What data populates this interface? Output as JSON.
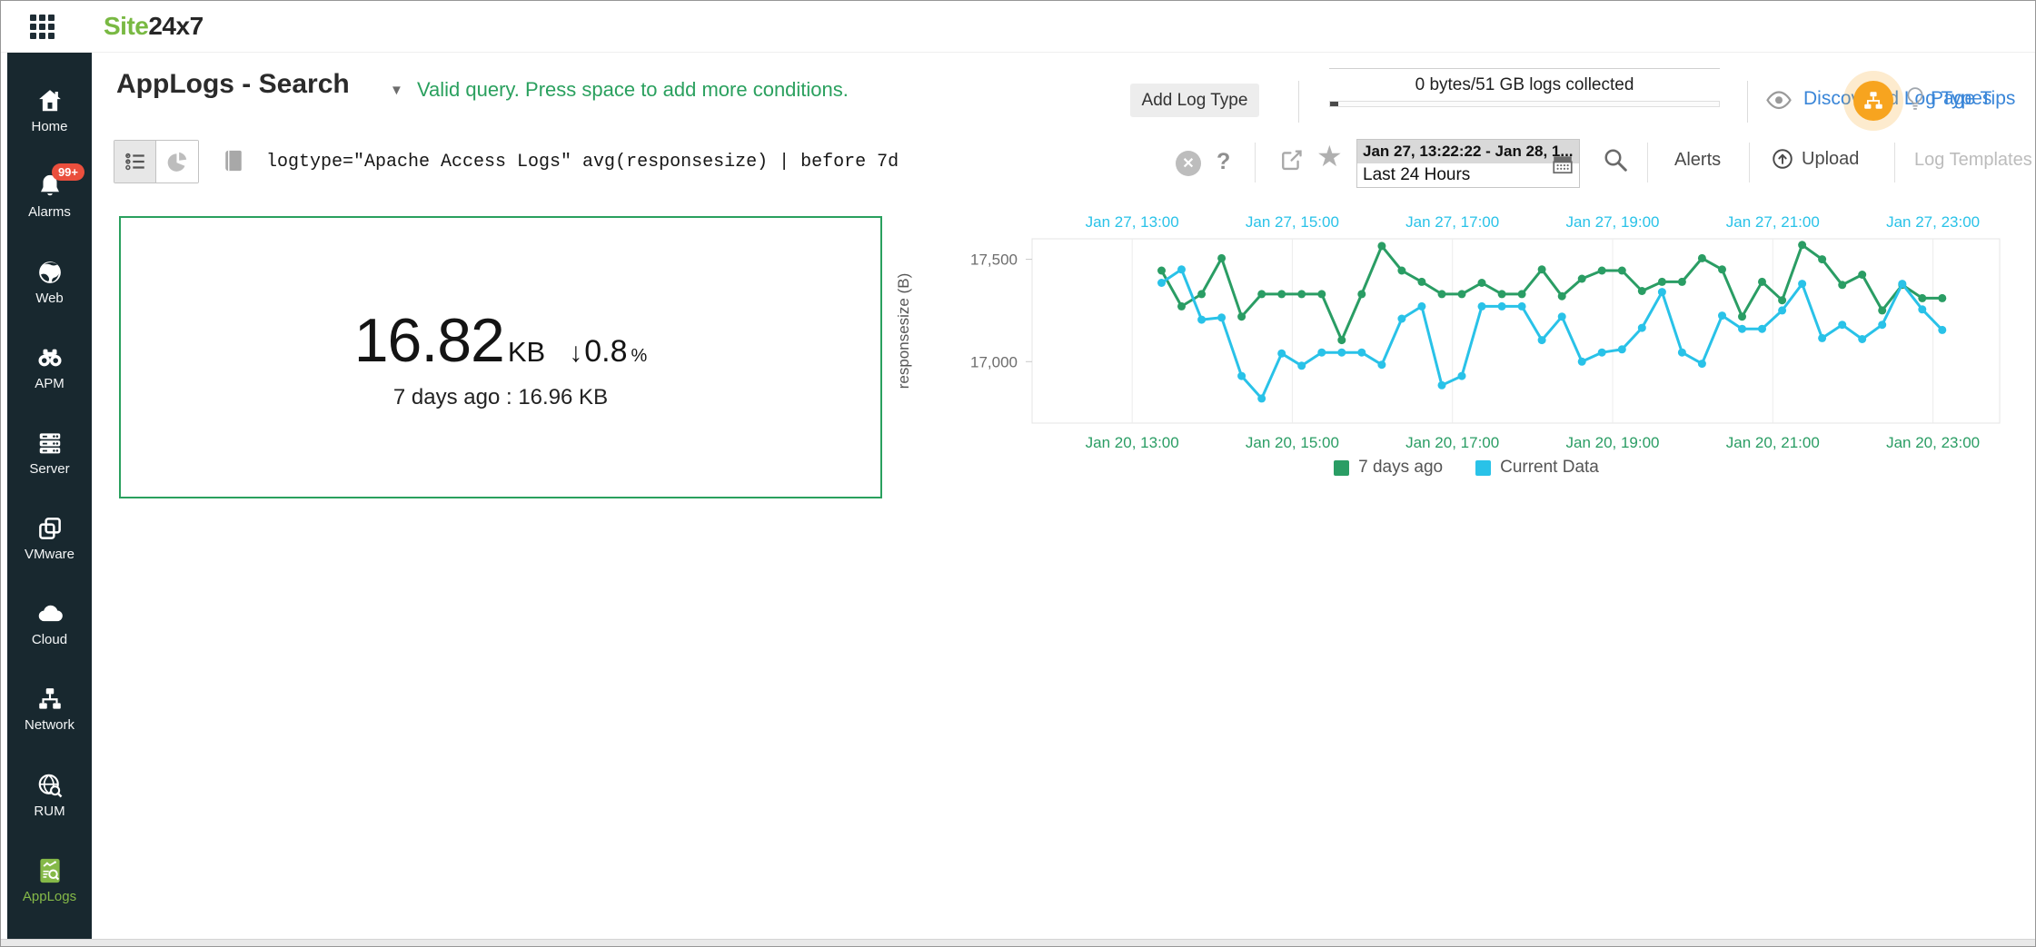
{
  "topbar": {
    "logo_part1": "Site",
    "logo_part2": "24x7"
  },
  "sidebar": {
    "items": [
      {
        "label": "Home",
        "icon": "home"
      },
      {
        "label": "Alarms",
        "icon": "bell",
        "badge": "99+"
      },
      {
        "label": "Web",
        "icon": "globe"
      },
      {
        "label": "APM",
        "icon": "binoculars"
      },
      {
        "label": "Server",
        "icon": "server"
      },
      {
        "label": "VMware",
        "icon": "vmware"
      },
      {
        "label": "Cloud",
        "icon": "cloud"
      },
      {
        "label": "Network",
        "icon": "network"
      },
      {
        "label": "RUM",
        "icon": "rum"
      },
      {
        "label": "AppLogs",
        "icon": "applogs",
        "active": true
      }
    ]
  },
  "header": {
    "title": "AppLogs - Search",
    "validation_message": "Valid query. Press space to add more conditions.",
    "add_log_type_label": "Add Log Type",
    "usage_text": "0 bytes/51 GB logs collected",
    "discovered_label": "Discovered Log Types",
    "page_tips_label": "Page Tips"
  },
  "querybar": {
    "query": "logtype=\"Apache Access Logs\" avg(responsesize) | before 7d",
    "help_label": "?",
    "star_glyph": "★",
    "date_range": "Jan 27, 13:22:22 - Jan 28, 1...",
    "quick_range": "Last 24 Hours",
    "alerts_label": "Alerts",
    "upload_label": "Upload",
    "log_templates_label": "Log Templates"
  },
  "stat": {
    "value": "16.82",
    "unit": "KB",
    "delta_direction": "down",
    "delta_arrow": "↓",
    "delta_value": "0.8",
    "delta_unit": "%",
    "comparison": "7 days ago : 16.96 KB"
  },
  "chart_data": {
    "type": "line",
    "title": "",
    "ylabel": "responsesize (B)",
    "ylim": [
      16700,
      17600
    ],
    "yticks": [
      {
        "value": 17000,
        "label": "17,000"
      },
      {
        "value": 17500,
        "label": "17,500"
      }
    ],
    "grid": "vertical-only",
    "legend_position": "bottom",
    "x_domain_minutes": [
      705,
      1430
    ],
    "x_gridline_minutes": [
      780,
      900,
      1020,
      1140,
      1260,
      1380
    ],
    "x_axis_top": {
      "color": "#29c2e8",
      "labels": [
        "Jan 27, 13:00",
        "Jan 27, 15:00",
        "Jan 27, 17:00",
        "Jan 27, 19:00",
        "Jan 27, 21:00",
        "Jan 27, 23:00"
      ]
    },
    "x_axis_bottom": {
      "color": "#2a9d64",
      "labels": [
        "Jan 20, 13:00",
        "Jan 20, 15:00",
        "Jan 20, 17:00",
        "Jan 20, 19:00",
        "Jan 20, 21:00",
        "Jan 20, 23:00"
      ]
    },
    "points_start_minute": 802,
    "points_step_minutes": 15,
    "series": [
      {
        "name": "7 days ago",
        "color": "#2a9d64",
        "values": [
          17445,
          17270,
          17330,
          17505,
          17220,
          17330,
          17330,
          17330,
          17330,
          17105,
          17330,
          17565,
          17445,
          17390,
          17330,
          17330,
          17385,
          17330,
          17330,
          17450,
          17320,
          17405,
          17445,
          17445,
          17345,
          17390,
          17390,
          17505,
          17450,
          17220,
          17390,
          17300,
          17570,
          17500,
          17375,
          17425,
          17250,
          17375,
          17310,
          17310
        ]
      },
      {
        "name": "Current Data",
        "color": "#29c2e8",
        "values": [
          17385,
          17450,
          17205,
          17215,
          16930,
          16820,
          17040,
          16980,
          17045,
          17045,
          17045,
          16985,
          17210,
          17270,
          16885,
          16930,
          17270,
          17270,
          17270,
          17105,
          17220,
          17000,
          17045,
          17060,
          17165,
          17340,
          17045,
          16990,
          17225,
          17160,
          17160,
          17250,
          17380,
          17115,
          17180,
          17110,
          17180,
          17380,
          17255,
          17155
        ]
      }
    ]
  },
  "colors": {
    "brand_green": "#79b943",
    "accent_green": "#2a9d64",
    "accent_cyan": "#29c2e8",
    "link_blue": "#3a86d8",
    "badge_red": "#ea4f3d",
    "highlight_orange": "#f7a41f"
  }
}
